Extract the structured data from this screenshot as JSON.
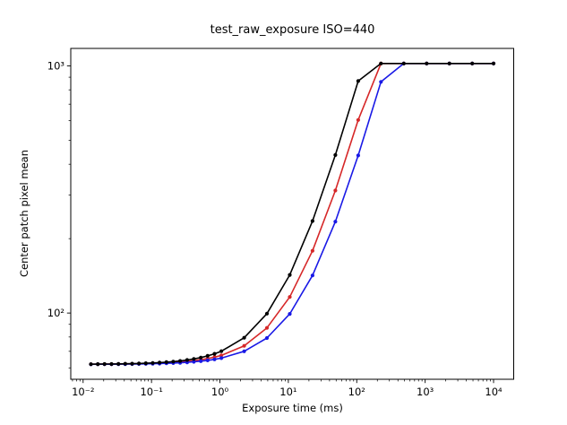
{
  "chart_data": {
    "type": "line",
    "title": "test_raw_exposure ISO=440",
    "xlabel": "Exposure time (ms)",
    "ylabel": "Center patch pixel mean",
    "x_scale": "log",
    "y_scale": "log",
    "grid": false,
    "legend": false,
    "marker": "o",
    "saturation_level": 1023,
    "black_level": 62,
    "x": [
      0.013,
      0.0164,
      0.0206,
      0.026,
      0.0328,
      0.0413,
      0.052,
      0.0655,
      0.0826,
      0.104,
      0.131,
      0.165,
      0.208,
      0.262,
      0.331,
      0.416,
      0.525,
      0.661,
      0.833,
      1.05,
      2.26,
      4.87,
      10.5,
      22.6,
      48.7,
      105,
      226,
      487,
      1050,
      2262,
      4873,
      10000
    ],
    "series": [
      {
        "name": "red",
        "color": "#d62728",
        "values": [
          62.07,
          62.08,
          62.11,
          62.13,
          62.17,
          62.21,
          62.27,
          62.34,
          62.43,
          62.54,
          62.68,
          62.85,
          63.07,
          63.35,
          63.71,
          64.15,
          64.71,
          65.41,
          66.3,
          67.4,
          73.7,
          87.1,
          116.2,
          178.6,
          313,
          604,
          1023,
          1023,
          1023,
          1023,
          1023,
          1023
        ]
      },
      {
        "name": "blue",
        "color": "#1919e6",
        "values": [
          62.05,
          62.06,
          62.07,
          62.09,
          62.12,
          62.15,
          62.18,
          62.23,
          62.29,
          62.37,
          62.46,
          62.58,
          62.74,
          62.93,
          63.17,
          63.47,
          63.86,
          64.34,
          64.95,
          65.7,
          70.0,
          79.2,
          99.2,
          142,
          234.4,
          434,
          862,
          1023,
          1023,
          1023,
          1023,
          1023
        ]
      },
      {
        "name": "black",
        "color": "#000000",
        "values": [
          62.1,
          62.13,
          62.16,
          62.2,
          62.25,
          62.32,
          62.4,
          62.5,
          62.63,
          62.8,
          63.0,
          63.27,
          63.6,
          64.0,
          64.54,
          65.2,
          66.03,
          67.08,
          68.4,
          70.06,
          79.4,
          99.4,
          142.6,
          235.6,
          436,
          868,
          1023,
          1023,
          1023,
          1023,
          1023,
          1023
        ]
      }
    ],
    "x_ticks": {
      "labels": [
        "10⁻²",
        "10⁻¹",
        "10⁰",
        "10¹",
        "10²",
        "10³",
        "10⁴"
      ],
      "exponents": [
        -2,
        -1,
        0,
        1,
        2,
        3,
        4
      ]
    },
    "y_ticks": {
      "labels": [
        "10²",
        "10³"
      ],
      "exponents": [
        2,
        3
      ]
    },
    "xlim_log10": [
      -2.1804,
      4.2943
    ],
    "ylim_log10": [
      1.732,
      3.0707
    ]
  }
}
